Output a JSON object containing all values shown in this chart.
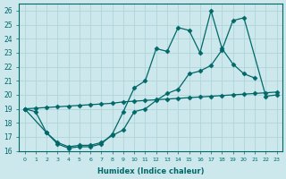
{
  "xlabel": "Humidex (Indice chaleur)",
  "bg_color": "#cce8ec",
  "grid_color": "#b0d4d8",
  "line_color": "#006868",
  "xlim": [
    -0.5,
    23.5
  ],
  "ylim": [
    16,
    26.5
  ],
  "xticks": [
    0,
    1,
    2,
    3,
    4,
    5,
    6,
    7,
    8,
    9,
    10,
    11,
    12,
    13,
    14,
    15,
    16,
    17,
    18,
    19,
    20,
    21,
    22,
    23
  ],
  "yticks": [
    16,
    17,
    18,
    19,
    20,
    21,
    22,
    23,
    24,
    25,
    26
  ],
  "series": [
    {
      "x": [
        0,
        1,
        2,
        3,
        4,
        5,
        6,
        7,
        8,
        9,
        10,
        11,
        12,
        13,
        14,
        15,
        16,
        17,
        18,
        19,
        20,
        21
      ],
      "y": [
        19.0,
        18.8,
        17.3,
        16.5,
        16.2,
        16.3,
        16.3,
        16.5,
        17.2,
        18.8,
        20.5,
        21.0,
        23.3,
        23.1,
        24.8,
        24.6,
        23.0,
        26.0,
        23.3,
        22.2,
        21.5,
        21.2
      ]
    },
    {
      "x": [
        0,
        1,
        2,
        3,
        4,
        5,
        6,
        7,
        8,
        9,
        10,
        11,
        12,
        13,
        14,
        15,
        16,
        17,
        18,
        19,
        20,
        21,
        22,
        23
      ],
      "y": [
        19.0,
        19.05,
        19.1,
        19.15,
        19.2,
        19.25,
        19.3,
        19.35,
        19.4,
        19.5,
        19.55,
        19.6,
        19.65,
        19.7,
        19.75,
        19.8,
        19.85,
        19.9,
        19.95,
        20.0,
        20.05,
        20.1,
        20.15,
        20.2
      ]
    },
    {
      "x": [
        0,
        2,
        3,
        4,
        5,
        6,
        7,
        8,
        9,
        10,
        11,
        12,
        13,
        14,
        15,
        16,
        17,
        18,
        19,
        20,
        22,
        23
      ],
      "y": [
        19.0,
        17.3,
        16.6,
        16.3,
        16.4,
        16.4,
        16.6,
        17.1,
        17.5,
        18.8,
        19.0,
        19.6,
        20.1,
        20.4,
        21.5,
        21.7,
        22.1,
        23.2,
        25.3,
        25.5,
        19.9,
        20.0
      ]
    }
  ]
}
